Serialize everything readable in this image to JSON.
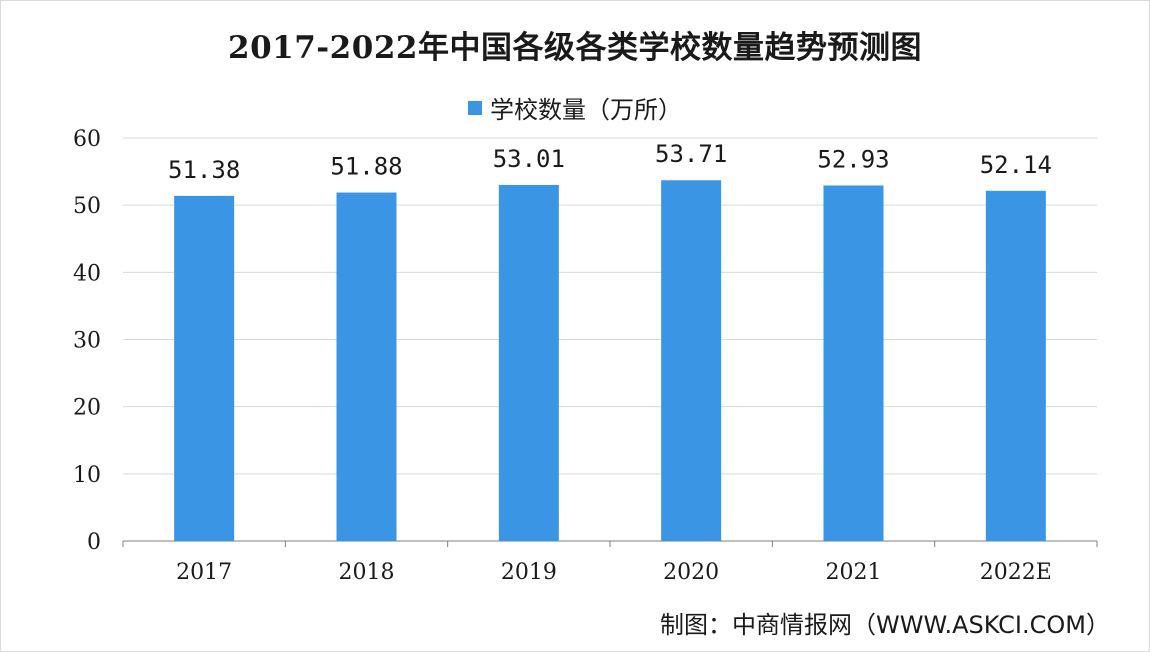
{
  "chart_data": {
    "type": "bar",
    "title": "2017-2022年中国各级各类学校数量趋势预测图",
    "categories": [
      "2017",
      "2018",
      "2019",
      "2020",
      "2021",
      "2022E"
    ],
    "series": [
      {
        "name": "学校数量（万所）",
        "values": [
          51.38,
          51.88,
          53.01,
          53.71,
          52.93,
          52.14
        ]
      }
    ],
    "data_labels": [
      "51.38",
      "51.88",
      "53.01",
      "53.71",
      "52.93",
      "52.14"
    ],
    "ylim": [
      0,
      60
    ],
    "yticks": [
      0,
      10,
      20,
      30,
      40,
      50,
      60
    ],
    "grid": true,
    "legend_position": "top",
    "bar_color": "#3a95e5"
  },
  "source_text": "制图：中商情报网（WWW.ASKCI.COM）"
}
